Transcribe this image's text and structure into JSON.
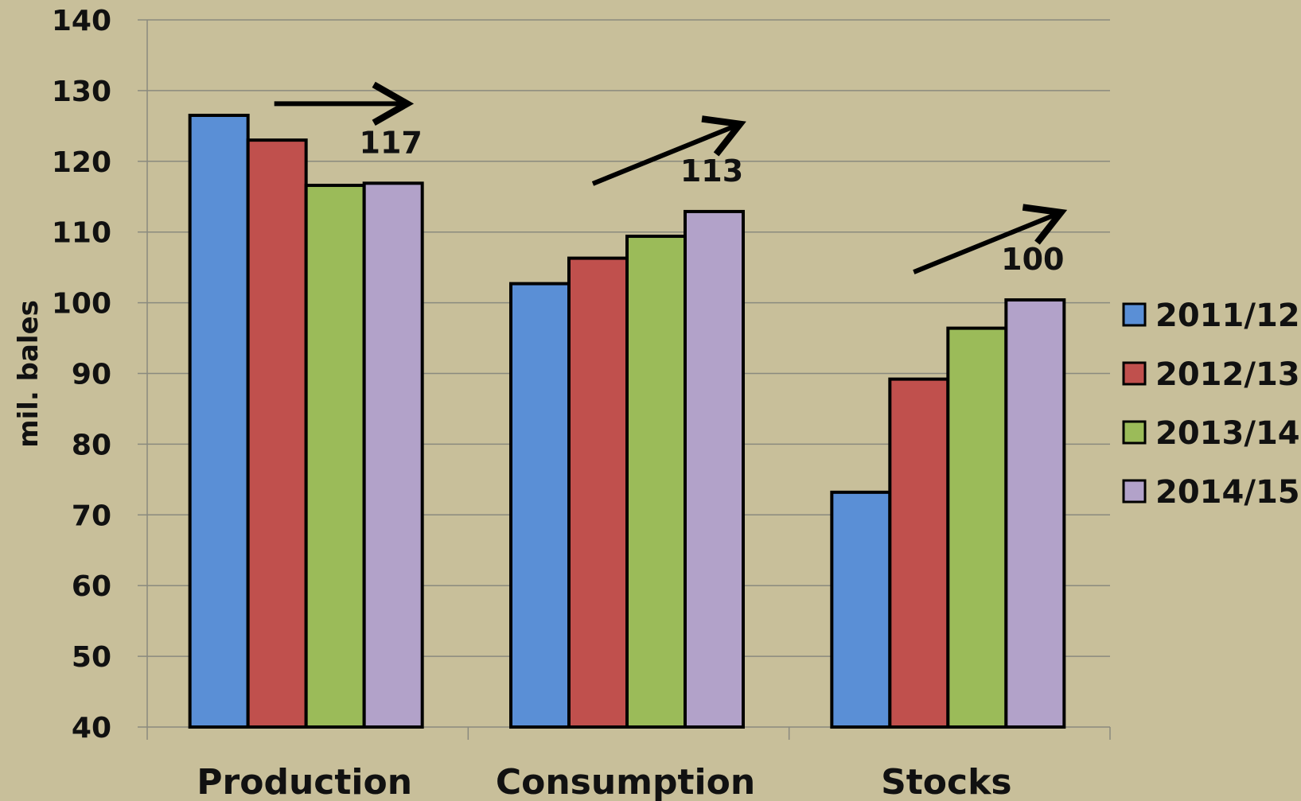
{
  "chart_data": {
    "type": "bar",
    "title": "",
    "ylabel": "mil. bales",
    "xlabel": "",
    "ylim": [
      40,
      140
    ],
    "ytick_step": 10,
    "categories": [
      "Production",
      "Consumption",
      "Stocks"
    ],
    "series": [
      {
        "name": "2011/12",
        "color": "#5a8fd6",
        "values": [
          126.5,
          102.7,
          73.2
        ]
      },
      {
        "name": "2012/13",
        "color": "#c0504d",
        "values": [
          123.0,
          106.3,
          89.2
        ]
      },
      {
        "name": "2013/14",
        "color": "#9bbb59",
        "values": [
          116.6,
          109.4,
          96.4
        ]
      },
      {
        "name": "2014/15",
        "color": "#b2a2c9",
        "values": [
          116.9,
          112.9,
          100.4
        ]
      }
    ],
    "data_labels": [
      {
        "category": "Production",
        "series": "2014/15",
        "text": "117"
      },
      {
        "category": "Consumption",
        "series": "2014/15",
        "text": "113"
      },
      {
        "category": "Stocks",
        "series": "2014/15",
        "text": "100"
      }
    ],
    "annotations": [
      {
        "type": "arrow",
        "category": "Production",
        "direction": "flat"
      },
      {
        "type": "arrow",
        "category": "Consumption",
        "direction": "up"
      },
      {
        "type": "arrow",
        "category": "Stocks",
        "direction": "up"
      }
    ],
    "grid": true,
    "legend_position": "right"
  }
}
